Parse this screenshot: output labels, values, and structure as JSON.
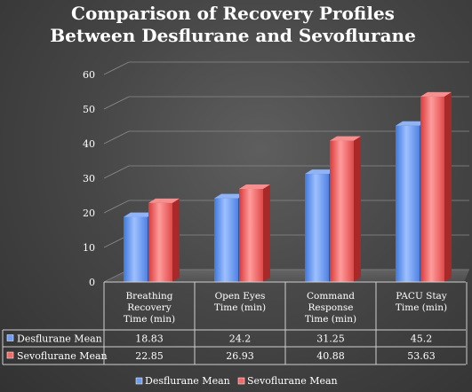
{
  "chart_data": {
    "type": "bar",
    "title_lines": [
      "Comparison of Recovery Profiles",
      "Between Desflurane and Sevoflurane"
    ],
    "categories": [
      [
        "Breathing",
        "Recovery",
        "Time (min)"
      ],
      [
        "Open Eyes",
        "Time (min)"
      ],
      [
        "Command",
        "Response",
        "Time (min)"
      ],
      [
        "PACU Stay",
        "Time (min)"
      ]
    ],
    "series": [
      {
        "name": "Desflurane Mean",
        "values": [
          18.83,
          24.2,
          31.25,
          45.2
        ],
        "labels": [
          "18.83",
          "24.2",
          "31.25",
          "45.2"
        ],
        "color": "#6f9ef0"
      },
      {
        "name": "Sevoflurane Mean",
        "values": [
          22.85,
          26.93,
          40.88,
          53.63
        ],
        "labels": [
          "22.85",
          "26.93",
          "40.88",
          "53.63"
        ],
        "color": "#f06a6a"
      }
    ],
    "yticks": [
      "0",
      "10",
      "20",
      "30",
      "40",
      "50",
      "60"
    ],
    "ylim": [
      0,
      60
    ],
    "grid": true,
    "legend_position": "bottom",
    "data_table": true
  }
}
